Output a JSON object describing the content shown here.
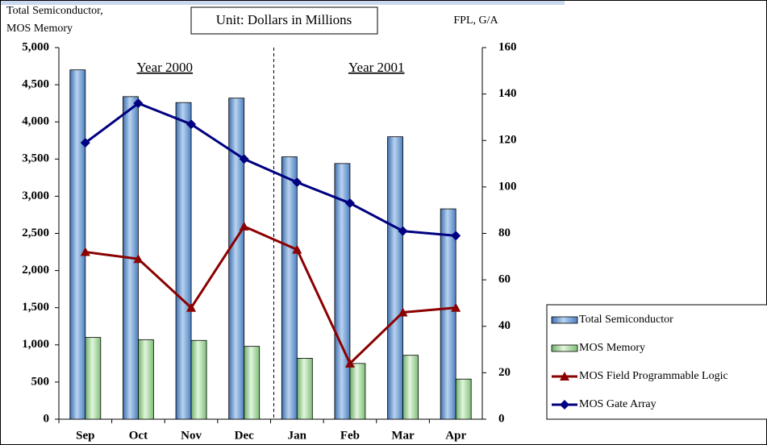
{
  "chart_data": {
    "type": "bar",
    "ylabel": [
      "Total Semiconductor,",
      "MOS Memory"
    ],
    "y2label": "FPL, G/A",
    "annotation": "Unit: Dollars in Millions",
    "periods": [
      "Year 2000",
      "Year 2001"
    ],
    "categories": [
      "Sep",
      "Oct",
      "Nov",
      "Dec",
      "Jan",
      "Feb",
      "Mar",
      "Apr"
    ],
    "series": [
      {
        "name": "Total Semiconductor",
        "type": "bar",
        "color": "#6b9bd2",
        "values": [
          4700,
          4340,
          4260,
          4320,
          3530,
          3440,
          3800,
          2830
        ]
      },
      {
        "name": "MOS Memory",
        "type": "bar",
        "color": "#a8d8a0",
        "values": [
          1100,
          1070,
          1060,
          980,
          820,
          750,
          860,
          540
        ]
      },
      {
        "name": "MOS Field Programmable Logic",
        "type": "line",
        "axis": "y2",
        "marker": "triangle",
        "color": "#8b0000",
        "values": [
          72,
          69,
          48,
          83,
          73,
          24,
          46,
          48
        ]
      },
      {
        "name": "MOS Gate Array",
        "type": "line",
        "axis": "y2",
        "marker": "diamond",
        "color": "#000080",
        "values": [
          119,
          136,
          127,
          112,
          102,
          93,
          81,
          79
        ]
      }
    ],
    "ylim": [
      0,
      5000
    ],
    "yticks": [
      0,
      500,
      {
        "value": 1000,
        "label": "1,000"
      },
      {
        "value": 1500,
        "label": "1,500"
      },
      {
        "value": 2000,
        "label": "2,000"
      },
      {
        "value": 2500,
        "label": "2,500"
      },
      {
        "value": 3000,
        "label": "3,000"
      },
      {
        "value": 3500,
        "label": "3,500"
      },
      {
        "value": 4000,
        "label": "4,000"
      },
      {
        "value": 4500,
        "label": "4,500"
      },
      {
        "value": 5000,
        "label": "5,000"
      }
    ],
    "y2lim": [
      0,
      160
    ],
    "y2ticks": [
      0,
      20,
      40,
      60,
      80,
      100,
      120,
      140,
      160
    ],
    "legend": "lower right"
  }
}
